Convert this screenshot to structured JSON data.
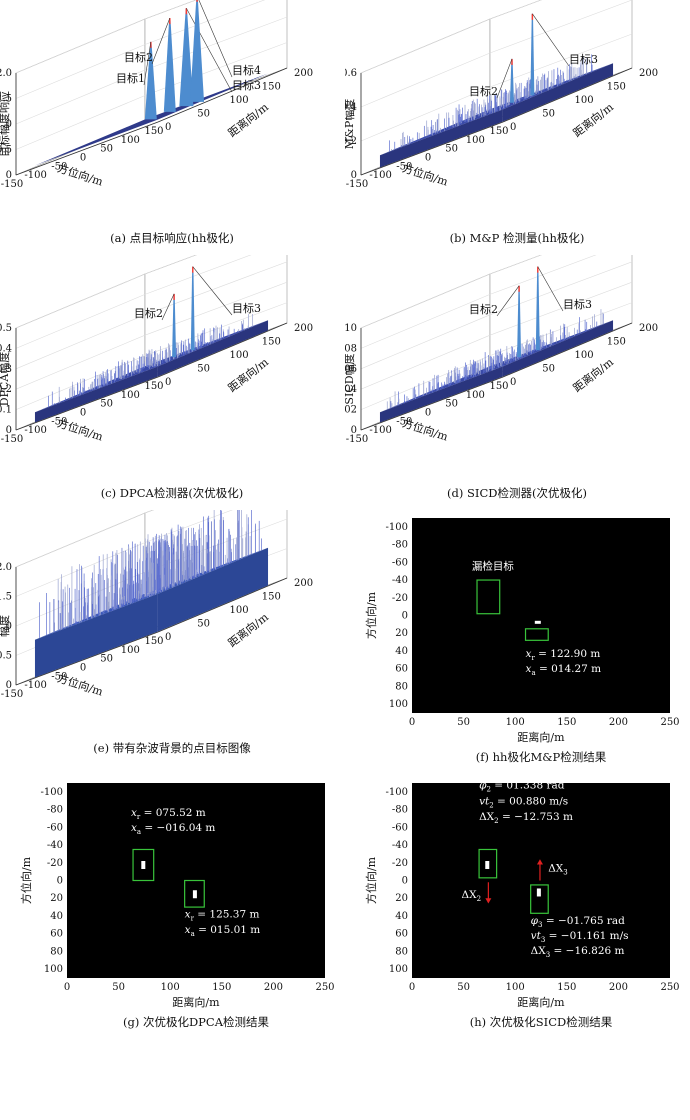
{
  "surf_tick_x": [
    "-150",
    "-100",
    "-50",
    "0",
    "50",
    "100",
    "150"
  ],
  "surf_tick_y": [
    "0",
    "50",
    "100",
    "150",
    "200"
  ],
  "surf_xlabel": "方位向/m",
  "surf_ylabel": "距离向/m",
  "map_tick_x": [
    "0",
    "50",
    "100",
    "150",
    "200",
    "250"
  ],
  "map_tick_y": [
    "-100",
    "-80",
    "-60",
    "-40",
    "-20",
    "0",
    "20",
    "40",
    "60",
    "80",
    "100"
  ],
  "map_xlabel": "距离向/m",
  "map_ylabel": "方位向/m",
  "panels": {
    "a": {
      "caption": "(a) 点目标响应(hh极化)",
      "zlabel": "目标幅度响应",
      "zticks": [
        "0",
        "0.5",
        "1.0",
        "1.5",
        "2.0"
      ],
      "labels": [
        "目标1",
        "目标2",
        "目标3",
        "目标4"
      ]
    },
    "b": {
      "caption": "(b) M&P 检测量(hh极化)",
      "zlabel": "M&P幅度",
      "zticks": [
        "0",
        "0.2",
        "0.4",
        "0.6"
      ],
      "labels": [
        "目标2",
        "目标3"
      ]
    },
    "c": {
      "caption": "(c) DPCA检测器(次优极化)",
      "zlabel": "DPCA幅度",
      "zticks": [
        "0",
        "0.1",
        "0.2",
        "0.3",
        "0.4",
        "0.5"
      ],
      "labels": [
        "目标2",
        "目标3"
      ]
    },
    "d": {
      "caption": "(d) SICD检测器(次优极化)",
      "zlabel": "SICD幅度",
      "zticks": [
        "0",
        "0.02",
        "0.04",
        "0.06",
        "0.08",
        "0.10"
      ],
      "labels": [
        "目标2",
        "目标3"
      ]
    },
    "e": {
      "caption": "(e) 带有杂波背景的点目标图像",
      "zlabel": "幅度",
      "zticks": [
        "0",
        "0.5",
        "1.0",
        "1.5",
        "2.0"
      ]
    },
    "f": {
      "caption": "(f)  hh极化M&P检测结果",
      "missed_label": "漏检目标",
      "t1": {
        "xr": "122.90 m",
        "xa": "014.27 m"
      }
    },
    "g": {
      "caption": "(g) 次优极化DPCA检测结果",
      "t1": {
        "xr": "075.52 m",
        "xa": "−016.04 m"
      },
      "t2": {
        "xr": "125.37 m",
        "xa": "015.01 m"
      }
    },
    "h": {
      "caption": "(h) 次优极化SICD检测结果",
      "t2": {
        "phi": "01.338 rad",
        "vt": "00.880 m/s",
        "dx": "−12.753 m"
      },
      "t3": {
        "phi": "−01.765 rad",
        "vt": "−01.161 m/s",
        "dx": "−16.826 m"
      },
      "dx2_label": "ΔX",
      "dx2_sub": "2",
      "dx3_label": "ΔX",
      "dx3_sub": "3"
    }
  },
  "colors": {
    "surface": "#3845a0",
    "surface_light": "#5d6fd0",
    "mesh": "#9aa3cf",
    "peak": "#ff3b2f",
    "box": "#39c43b",
    "arrow": "#e02020",
    "map_bg": "#000000"
  }
}
